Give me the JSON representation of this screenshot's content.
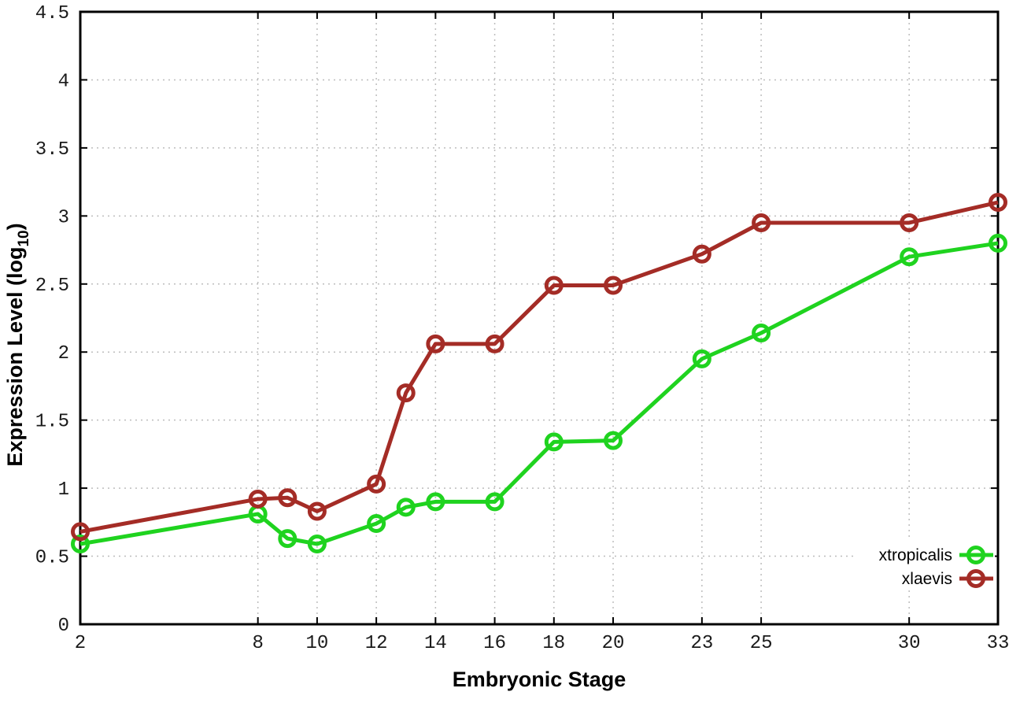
{
  "chart_data": {
    "type": "line",
    "title": "",
    "xlabel": "Embryonic Stage",
    "ylabel": "Expression Level (log10)",
    "ylabel_pre": "Expression Level (log",
    "ylabel_sub": "10",
    "ylabel_post": ")",
    "xlim": [
      2,
      33
    ],
    "ylim": [
      0,
      4.5
    ],
    "xticks": [
      2,
      8,
      10,
      12,
      14,
      16,
      18,
      20,
      23,
      25,
      30,
      33
    ],
    "yticks": [
      0,
      0.5,
      1,
      1.5,
      2,
      2.5,
      3,
      3.5,
      4,
      4.5
    ],
    "ytick_labels": [
      "0",
      "0.5",
      "1",
      "1.5",
      "2",
      "2.5",
      "3",
      "3.5",
      "4",
      "4.5"
    ],
    "grid": true,
    "legend_position": "bottom-right",
    "x": [
      2,
      8,
      9,
      10,
      12,
      13,
      14,
      16,
      18,
      20,
      23,
      25,
      30,
      33
    ],
    "series": [
      {
        "name": "xtropicalis",
        "color": "#1fd31f",
        "values": [
          0.59,
          0.81,
          0.63,
          0.59,
          0.74,
          0.86,
          0.9,
          0.9,
          1.34,
          1.35,
          1.95,
          2.14,
          2.7,
          2.8
        ]
      },
      {
        "name": "xlaevis",
        "color": "#a42c26",
        "values": [
          0.68,
          0.92,
          0.93,
          0.83,
          1.03,
          1.7,
          2.06,
          2.06,
          2.49,
          2.49,
          2.72,
          2.95,
          2.95,
          3.1
        ]
      }
    ],
    "colors": {
      "grid": "#bdbdbd",
      "axis": "#000000",
      "text": "#1a1a1a",
      "background": "#ffffff"
    }
  }
}
